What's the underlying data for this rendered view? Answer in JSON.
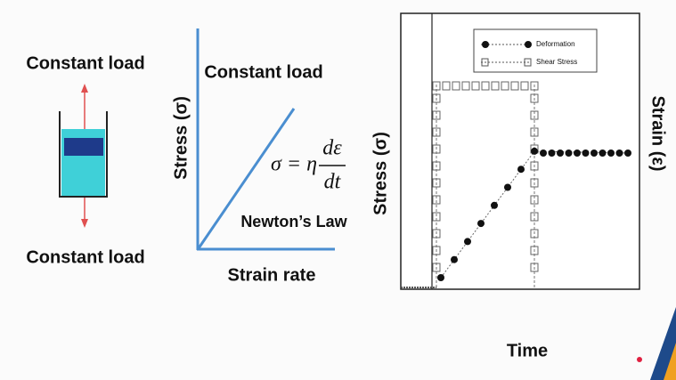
{
  "left": {
    "top_label": "Constant load",
    "bottom_label": "Constant load"
  },
  "middle": {
    "y_label": "Stress (σ)",
    "title": "Constant load",
    "equation": {
      "lhs": "σ = η",
      "numerator": "dε",
      "denominator": "dt"
    },
    "law": "Newton’s Law",
    "x_label": "Strain rate"
  },
  "right": {
    "y_label": "Stress (σ)",
    "y2_label": "Strain (ε)",
    "x_label": "Time",
    "legend": [
      "Deformation",
      "Shear Stress"
    ]
  }
}
